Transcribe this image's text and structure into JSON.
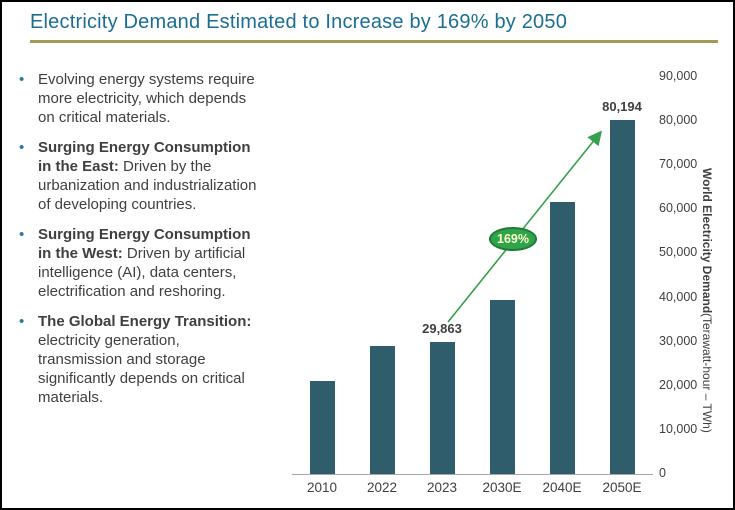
{
  "title": "Electricity Demand Estimated to Increase by 169% by 2050",
  "colors": {
    "title_text": "#1A6E94",
    "divider": "#A59A52",
    "body_text": "#3F3F3F",
    "bullet_marker": "#2B7A9E",
    "bar": "#2F5D6C",
    "axis_line": "#A6A6A6",
    "arrow": "#35A04C",
    "badge_fill": "#2FA44B",
    "badge_border": "#1E7A35",
    "badge_text": "#FFFFCC"
  },
  "bullets": [
    {
      "marker": "•",
      "bold": "",
      "text": "Evolving energy systems require\nmore electricity, which depends\non critical materials."
    },
    {
      "marker": "•",
      "bold": "Surging Energy Consumption\nin the East:",
      "text": " Driven by the\nurbanization and industrialization\nof developing countries."
    },
    {
      "marker": "•",
      "bold": "Surging Energy Consumption\nin the West:",
      "text": " Driven by artificial\nintelligence (AI), data centers,\nelectrification and reshoring."
    },
    {
      "marker": "•",
      "bold": "The Global Energy Transition:",
      "text": "\nelectricity generation,\ntransmission and storage\nsignificantly depends on critical\nmaterials."
    }
  ],
  "chart_data": {
    "type": "bar",
    "categories": [
      "2010",
      "2022",
      "2023",
      "2030E",
      "2040E",
      "2050E"
    ],
    "values": [
      21000,
      29000,
      29863,
      39500,
      61700,
      80194
    ],
    "bar_labels": [
      "",
      "",
      "29,863",
      "",
      "",
      "80,194"
    ],
    "title": "",
    "xlabel": "",
    "ylabel_bold": "World Electricity Demand",
    "ylabel_unit": " (Terawatt-hour – TWh)",
    "ylim": [
      0,
      90000
    ],
    "ytick_values": [
      0,
      10000,
      20000,
      30000,
      40000,
      50000,
      60000,
      70000,
      80000,
      90000
    ],
    "yticks": [
      "0",
      "10,000",
      "20,000",
      "30,000",
      "40,000",
      "50,000",
      "60,000",
      "70,000",
      "80,000",
      "90,000"
    ],
    "grid": false,
    "legend": false,
    "annotation": {
      "label": "169%"
    }
  }
}
